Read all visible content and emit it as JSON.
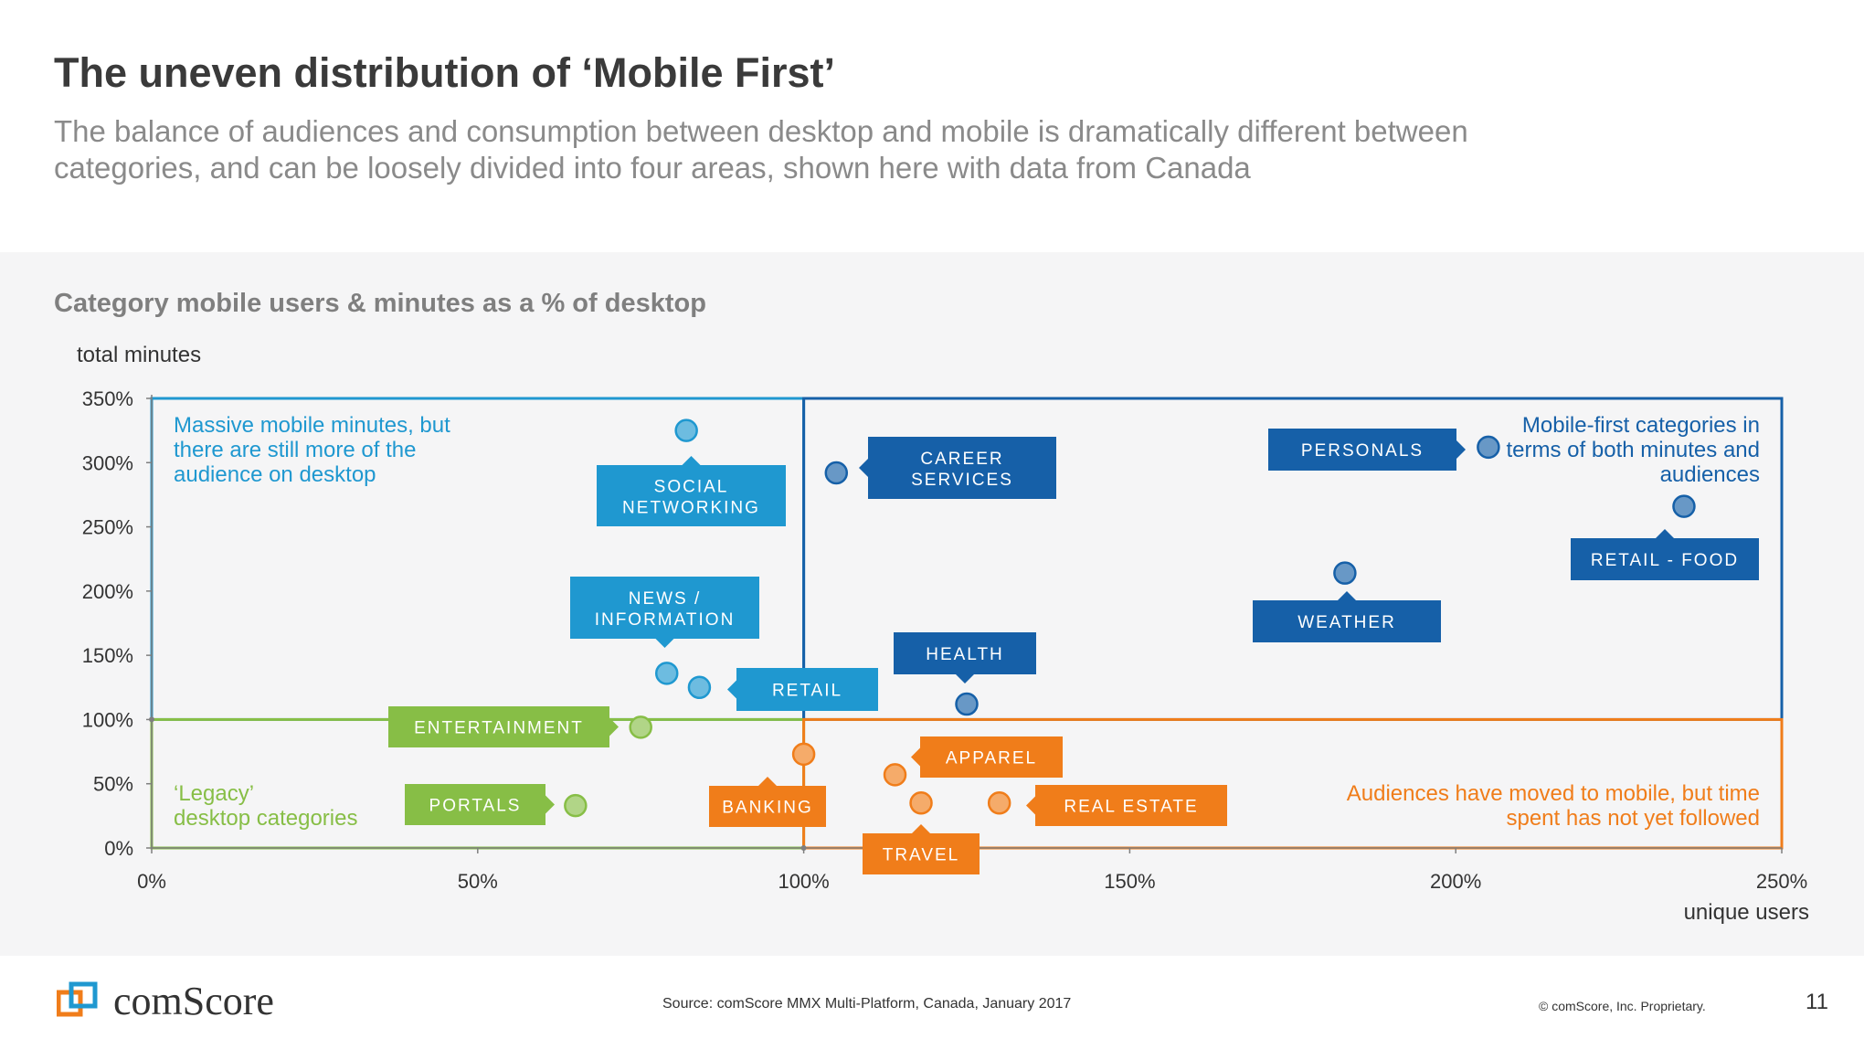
{
  "header": {
    "title": "The uneven distribution of ‘Mobile First’",
    "subtitle": "The balance of audiences and consumption between desktop and mobile is dramatically different between categories, and can be loosely divided into four areas, shown here with data from Canada"
  },
  "colors": {
    "light_blue": "#1f98d0",
    "dark_blue": "#1660a8",
    "green": "#87be46",
    "orange": "#f07d1a",
    "panel_bg": "#f5f5f6"
  },
  "chart_data": {
    "type": "scatter",
    "title": "Category mobile users & minutes as a % of desktop",
    "xlabel": "unique users",
    "ylabel": "total minutes",
    "xlim": [
      0,
      250
    ],
    "ylim": [
      0,
      350
    ],
    "x_ticks": [
      "0%",
      "50%",
      "100%",
      "150%",
      "200%",
      "250%"
    ],
    "y_ticks": [
      "0%",
      "50%",
      "100%",
      "150%",
      "200%",
      "250%",
      "300%",
      "350%"
    ],
    "grid": false,
    "quadrants": [
      {
        "name": "top-left",
        "color": "#1f98d0",
        "label": "Massive mobile minutes, but there are still more of the audience on desktop"
      },
      {
        "name": "top-right",
        "color": "#1660a8",
        "label": "Mobile-first categories in terms of both minutes and audiences"
      },
      {
        "name": "bottom-left",
        "color": "#87be46",
        "label": "‘Legacy’ desktop categories"
      },
      {
        "name": "bottom-right",
        "color": "#f07d1a",
        "label": "Audiences have moved to mobile, but time spent has not yet followed"
      }
    ],
    "points": [
      {
        "label": "SOCIAL NETWORKING",
        "x": 82,
        "y": 325,
        "color": "#1f98d0"
      },
      {
        "label": "NEWS / INFORMATION",
        "x": 79,
        "y": 136,
        "color": "#1f98d0"
      },
      {
        "label": "RETAIL",
        "x": 84,
        "y": 125,
        "color": "#1f98d0"
      },
      {
        "label": "CAREER SERVICES",
        "x": 105,
        "y": 292,
        "color": "#1660a8"
      },
      {
        "label": "HEALTH",
        "x": 125,
        "y": 112,
        "color": "#1660a8"
      },
      {
        "label": "PERSONALS",
        "x": 205,
        "y": 312,
        "color": "#1660a8"
      },
      {
        "label": "WEATHER",
        "x": 183,
        "y": 214,
        "color": "#1660a8"
      },
      {
        "label": "RETAIL - FOOD",
        "x": 235,
        "y": 266,
        "color": "#1660a8"
      },
      {
        "label": "ENTERTAINMENT",
        "x": 75,
        "y": 94,
        "color": "#87be46"
      },
      {
        "label": "PORTALS",
        "x": 65,
        "y": 33,
        "color": "#87be46"
      },
      {
        "label": "BANKING",
        "x": 100,
        "y": 73,
        "color": "#f07d1a"
      },
      {
        "label": "APPAREL",
        "x": 114,
        "y": 57,
        "color": "#f07d1a"
      },
      {
        "label": "TRAVEL",
        "x": 118,
        "y": 35,
        "color": "#f07d1a"
      },
      {
        "label": "REAL ESTATE",
        "x": 130,
        "y": 35,
        "color": "#f07d1a"
      }
    ]
  },
  "footer": {
    "logo_text": "comScore",
    "source": "Source: comScore MMX Multi-Platform, Canada, January 2017",
    "copyright": "© comScore, Inc. Proprietary.",
    "page_number": "11"
  }
}
